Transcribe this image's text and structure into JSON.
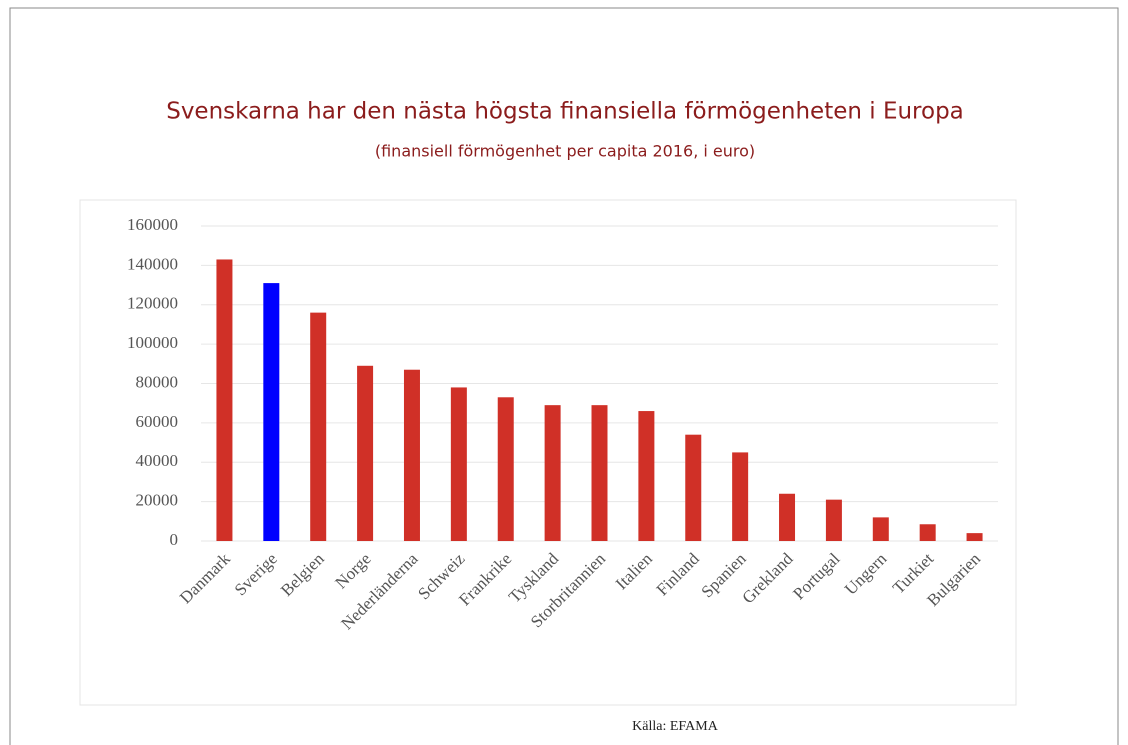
{
  "chart_data": {
    "type": "bar",
    "title": "Svenskarna har den nästa högsta finansiella förmögenheten i Europa",
    "subtitle": "(finansiell förmögenhet per capita 2016, i euro)",
    "source": "Källa: EFAMA",
    "categories": [
      "Danmark",
      "Sverige",
      "Belgien",
      "Norge",
      "Nederländerna",
      "Schweiz",
      "Frankrike",
      "Tyskland",
      "Storbritannien",
      "Italien",
      "Finland",
      "Spanien",
      "Grekland",
      "Portugal",
      "Ungern",
      "Turkiet",
      "Bulgarien"
    ],
    "values": [
      143000,
      131000,
      116000,
      89000,
      87000,
      78000,
      73000,
      69000,
      69000,
      66000,
      54000,
      45000,
      24000,
      21000,
      12000,
      8500,
      4000
    ],
    "colors": [
      "#d03027",
      "#0000ff",
      "#d03027",
      "#d03027",
      "#d03027",
      "#d03027",
      "#d03027",
      "#d03027",
      "#d03027",
      "#d03027",
      "#d03027",
      "#d03027",
      "#d03027",
      "#d03027",
      "#d03027",
      "#d03027",
      "#d03027"
    ],
    "ylim": [
      0,
      160000
    ],
    "yticks": [
      0,
      20000,
      40000,
      60000,
      80000,
      100000,
      120000,
      140000,
      160000
    ],
    "grid": true
  }
}
